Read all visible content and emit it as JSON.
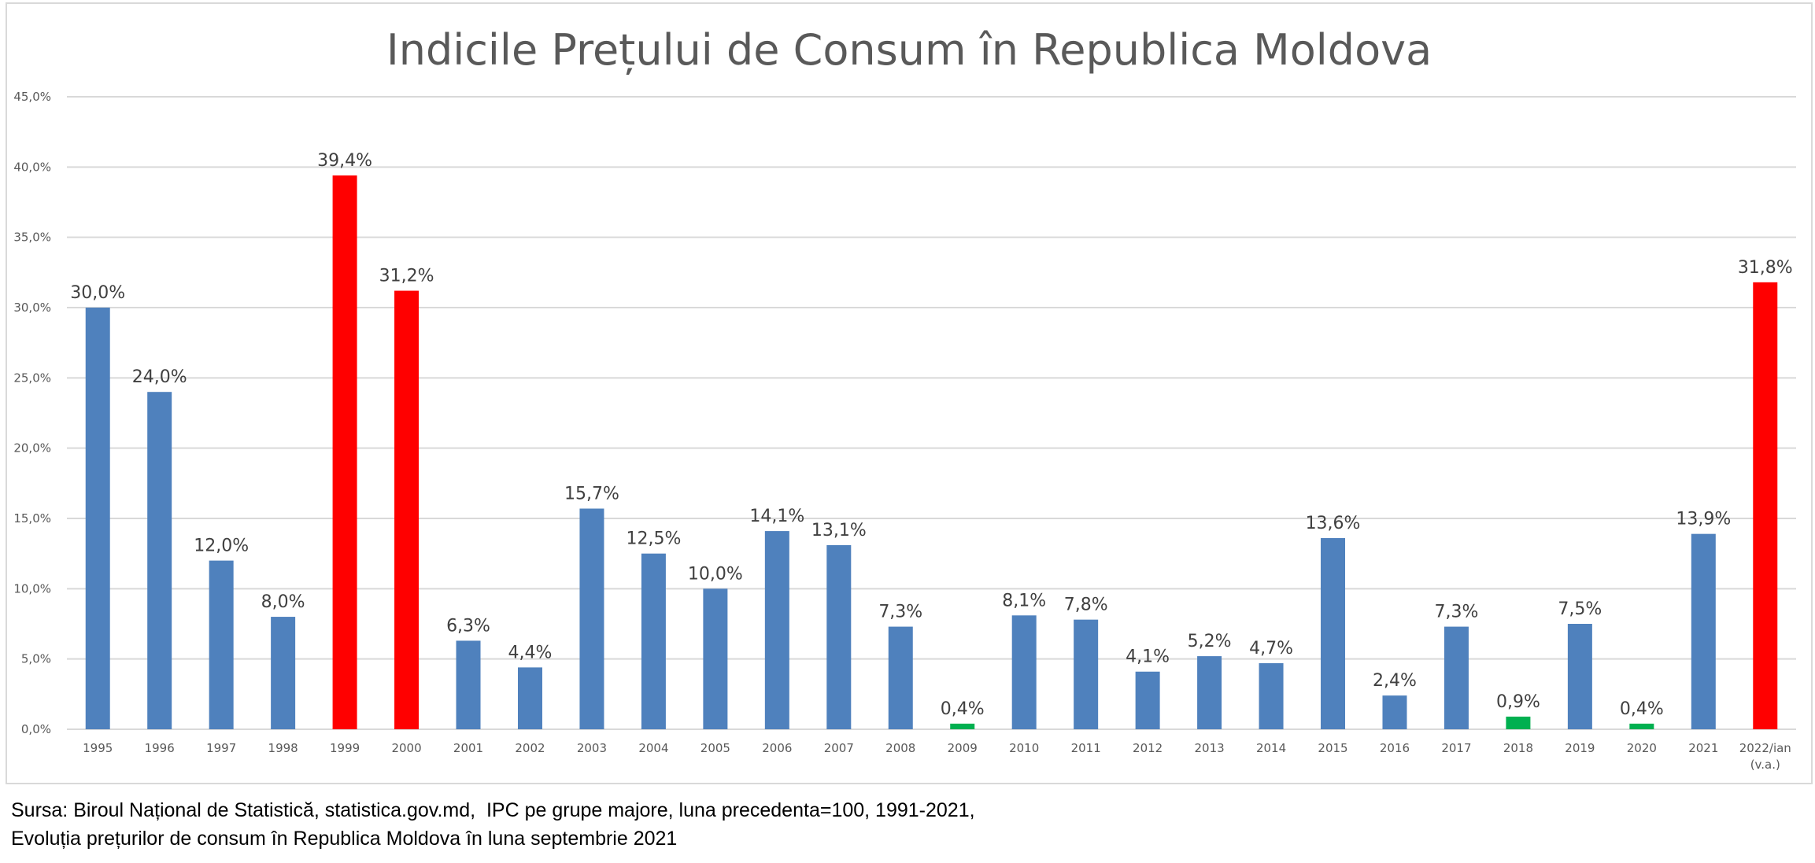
{
  "chart_data": {
    "type": "bar",
    "title": "Indicile Prețului de Consum în Republica Moldova",
    "xlabel": "",
    "ylabel": "",
    "ylim": [
      0,
      45
    ],
    "yticks": [
      0,
      5,
      10,
      15,
      20,
      25,
      30,
      35,
      40,
      45
    ],
    "ytick_labels": [
      "0,0%",
      "5,0%",
      "10,0%",
      "15,0%",
      "20,0%",
      "25,0%",
      "30,0%",
      "35,0%",
      "40,0%",
      "45,0%"
    ],
    "grid": true,
    "legend": "none",
    "categories": [
      "1995",
      "1996",
      "1997",
      "1998",
      "1999",
      "2000",
      "2001",
      "2002",
      "2003",
      "2004",
      "2005",
      "2006",
      "2007",
      "2008",
      "2009",
      "2010",
      "2011",
      "2012",
      "2013",
      "2014",
      "2015",
      "2016",
      "2017",
      "2018",
      "2019",
      "2020",
      "2021",
      "2022/ian (v.a.)"
    ],
    "category_lines": [
      [
        "1995"
      ],
      [
        "1996"
      ],
      [
        "1997"
      ],
      [
        "1998"
      ],
      [
        "1999"
      ],
      [
        "2000"
      ],
      [
        "2001"
      ],
      [
        "2002"
      ],
      [
        "2003"
      ],
      [
        "2004"
      ],
      [
        "2005"
      ],
      [
        "2006"
      ],
      [
        "2007"
      ],
      [
        "2008"
      ],
      [
        "2009"
      ],
      [
        "2010"
      ],
      [
        "2011"
      ],
      [
        "2012"
      ],
      [
        "2013"
      ],
      [
        "2014"
      ],
      [
        "2015"
      ],
      [
        "2016"
      ],
      [
        "2017"
      ],
      [
        "2018"
      ],
      [
        "2019"
      ],
      [
        "2020"
      ],
      [
        "2021"
      ],
      [
        "2022/ian",
        "(v.a.)"
      ]
    ],
    "values": [
      30.0,
      24.0,
      12.0,
      8.0,
      39.4,
      31.2,
      6.3,
      4.4,
      15.7,
      12.5,
      10.0,
      14.1,
      13.1,
      7.3,
      0.4,
      8.1,
      7.8,
      4.1,
      5.2,
      4.7,
      13.6,
      2.4,
      7.3,
      0.9,
      7.5,
      0.4,
      13.9,
      31.8
    ],
    "data_labels": [
      "30,0%",
      "24,0%",
      "12,0%",
      "8,0%",
      "39,4%",
      "31,2%",
      "6,3%",
      "4,4%",
      "15,7%",
      "12,5%",
      "10,0%",
      "14,1%",
      "13,1%",
      "7,3%",
      "0,4%",
      "8,1%",
      "7,8%",
      "4,1%",
      "5,2%",
      "4,7%",
      "13,6%",
      "2,4%",
      "7,3%",
      "0,9%",
      "7,5%",
      "0,4%",
      "13,9%",
      "31,8%"
    ],
    "bar_colors": [
      "normal",
      "normal",
      "normal",
      "normal",
      "high",
      "high",
      "normal",
      "normal",
      "normal",
      "normal",
      "normal",
      "normal",
      "normal",
      "normal",
      "low",
      "normal",
      "normal",
      "normal",
      "normal",
      "normal",
      "normal",
      "normal",
      "normal",
      "low",
      "normal",
      "low",
      "normal",
      "high"
    ],
    "palette": {
      "normal": "#4F81BD",
      "high": "#FF0000",
      "low": "#00B050"
    }
  },
  "footer": {
    "line1": "Sursa: Biroul Național de Statistică, statistica.gov.md,  IPC pe grupe majore, luna precedenta=100, 1991-2021,",
    "line2": "Evoluția prețurilor de consum în Republica Moldova în luna septembrie 2021"
  }
}
